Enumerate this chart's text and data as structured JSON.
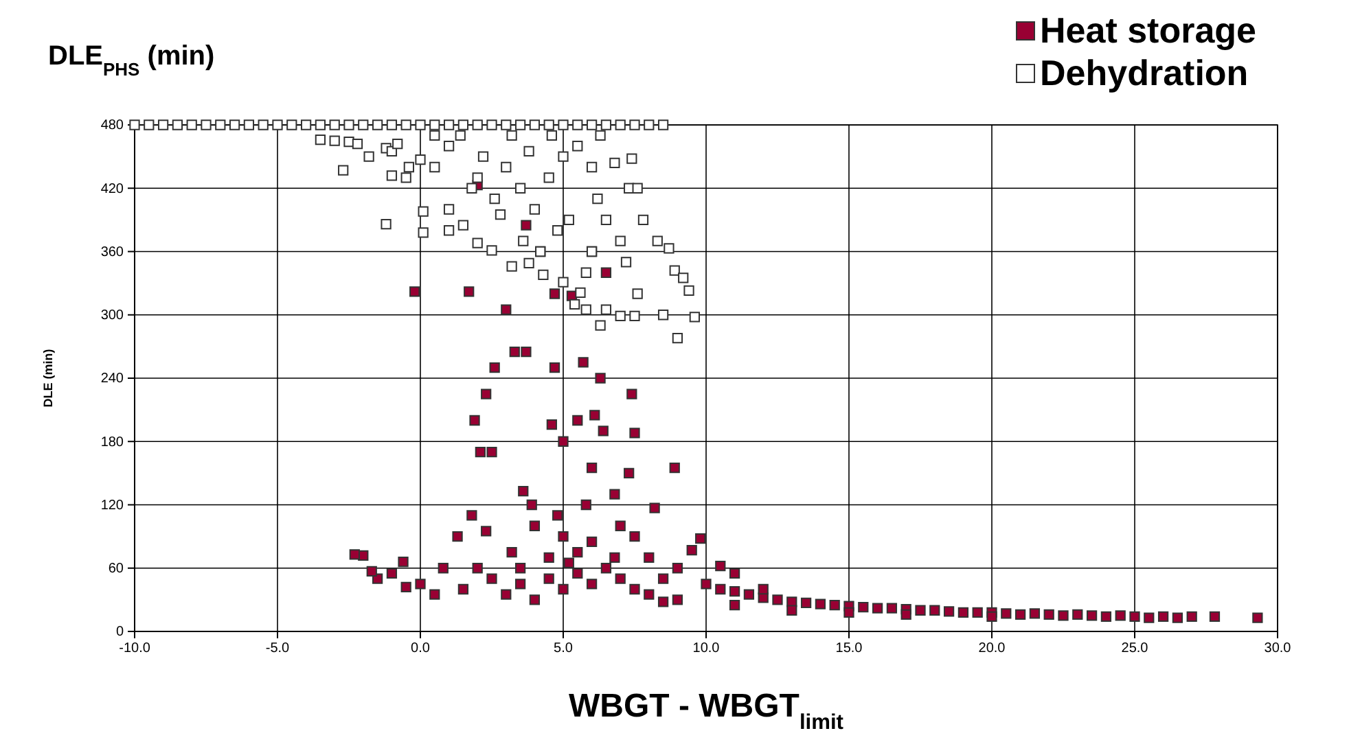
{
  "chart_data": {
    "type": "scatter",
    "title": "DLE$_{PHS}$  (min)",
    "xlabel": "WBGT - WBGT$_{limit}$",
    "ylabel": "DLE (min)",
    "xlim": [
      -10,
      30
    ],
    "xticks": [
      {
        "value": -10,
        "label": "-10.0"
      },
      {
        "value": -5,
        "label": "-5.0"
      },
      {
        "value": 0,
        "label": "0.0"
      },
      {
        "value": 5,
        "label": "5.0"
      },
      {
        "value": 10,
        "label": "10.0"
      },
      {
        "value": 15,
        "label": "15.0"
      },
      {
        "value": 20,
        "label": "20.0"
      },
      {
        "value": 25,
        "label": "25.0"
      },
      {
        "value": 30,
        "label": "30.0"
      }
    ],
    "ylim": [
      0,
      480
    ],
    "yticks": [
      0,
      60,
      120,
      180,
      240,
      300,
      360,
      420,
      480
    ],
    "grid": true,
    "legend": "top right",
    "marker": "square",
    "series": [
      {
        "name": "Heat storage",
        "color": "#990033",
        "x": [
          29.3,
          27.8,
          27,
          26.5,
          26,
          25.5,
          25,
          24.5,
          24,
          23.5,
          23,
          22.5,
          22,
          21.5,
          21,
          20.5,
          20,
          19.5,
          19,
          18.5,
          18,
          17.5,
          17,
          16.5,
          16,
          15.5,
          15,
          14.5,
          14,
          13.5,
          13,
          12.5,
          12,
          11.5,
          11,
          10.5,
          10,
          15,
          17,
          20,
          13,
          11,
          12,
          11,
          10.5,
          9.8,
          9.5,
          9,
          8.5,
          8,
          7.5,
          7,
          8.2,
          8.9,
          7.5,
          6.3,
          5.7,
          4.7,
          3.7,
          3.3,
          2.6,
          1.7,
          3,
          4.7,
          5.3,
          6,
          4.2,
          6.5,
          3.7,
          2,
          2.3,
          1.9,
          2.1,
          4.6,
          5,
          5.5,
          6.1,
          6,
          7.3,
          6.8,
          3.6,
          3.9,
          2.5,
          1.8,
          1.3,
          2.3,
          4,
          5,
          6,
          5.5,
          4.5,
          3.5,
          2.5,
          1.5,
          0.5,
          0,
          -0.5,
          -1,
          -1.5,
          -2,
          -2.3,
          -1.7,
          -0.6,
          0.8,
          2,
          3,
          4,
          5,
          6,
          7,
          8,
          9,
          6.5,
          5.5,
          4.5,
          7.5,
          8.5,
          3.5,
          5.2,
          6.8,
          4.8,
          5.8,
          3.2,
          -0.2,
          7.4,
          6.4
        ],
        "values": [
          13,
          14,
          14,
          13,
          14,
          13,
          14,
          15,
          14,
          15,
          16,
          15,
          16,
          17,
          16,
          17,
          18,
          18,
          18,
          19,
          20,
          20,
          21,
          22,
          22,
          23,
          24,
          25,
          26,
          27,
          28,
          30,
          32,
          35,
          38,
          40,
          45,
          18,
          16,
          14,
          20,
          25,
          40,
          55,
          62,
          88,
          77,
          60,
          50,
          70,
          90,
          100,
          117,
          155,
          188,
          240,
          255,
          250,
          265,
          265,
          250,
          322,
          305,
          320,
          318,
          360,
          360,
          340,
          385,
          423,
          225,
          200,
          170,
          196,
          180,
          200,
          205,
          155,
          150,
          130,
          133,
          120,
          170,
          110,
          90,
          95,
          100,
          90,
          85,
          75,
          70,
          60,
          50,
          40,
          35,
          45,
          42,
          55,
          50,
          72,
          73,
          57,
          66,
          60,
          60,
          35,
          30,
          40,
          45,
          50,
          35,
          30,
          60,
          55,
          50,
          40,
          28,
          45,
          65,
          70,
          110,
          120,
          75,
          322,
          225,
          190
        ]
      },
      {
        "name": "Dehydration",
        "color": "#ffffff",
        "x": [
          -10,
          -9.5,
          -9,
          -8.5,
          -8,
          -7.5,
          -7,
          -6.5,
          -6,
          -5.5,
          -5,
          -4.5,
          -4,
          -3.5,
          -3,
          -2.5,
          -2,
          -1.5,
          -1,
          -0.5,
          0,
          0.5,
          1,
          1.5,
          2,
          2.5,
          3,
          3.5,
          4,
          4.5,
          5,
          5.5,
          6,
          6.5,
          7,
          7.5,
          8,
          8.5,
          -3.5,
          -3,
          -2.5,
          -2.2,
          -2.7,
          -1.8,
          -1.2,
          -1,
          -0.8,
          -0.4,
          -0.5,
          -1,
          -1.2,
          0,
          0.5,
          0.1,
          0.1,
          1,
          1,
          1.5,
          2,
          2.5,
          3.2,
          3.8,
          4.3,
          5,
          5.4,
          5.6,
          5.8,
          6.3,
          6.5,
          7,
          7.6,
          7.5,
          8.5,
          9,
          9.6,
          9.4,
          8.9,
          9.2,
          7.3,
          7.6,
          7.8,
          8.3,
          8.7,
          6.8,
          7.4,
          1.4,
          2.2,
          3,
          3.5,
          2.6,
          4,
          4.5,
          5,
          5.5,
          6,
          6.2,
          5.2,
          4.8,
          3.6,
          4.2,
          6.5,
          7,
          7.2,
          6,
          5.8,
          2,
          1,
          0.5,
          3.2,
          4.6,
          6.3,
          1.8,
          2.8,
          3.8
        ],
        "values": [
          480,
          480,
          480,
          480,
          480,
          480,
          480,
          480,
          480,
          480,
          480,
          480,
          480,
          480,
          480,
          480,
          480,
          480,
          480,
          480,
          480,
          480,
          480,
          480,
          480,
          480,
          480,
          480,
          480,
          480,
          480,
          480,
          480,
          480,
          480,
          480,
          480,
          480,
          466,
          465,
          464,
          462,
          437,
          450,
          458,
          455,
          462,
          440,
          430,
          432,
          386,
          447,
          440,
          398,
          378,
          380,
          400,
          385,
          368,
          361,
          346,
          349,
          338,
          331,
          310,
          321,
          305,
          290,
          305,
          299,
          320,
          299,
          300,
          278,
          298,
          323,
          342,
          335,
          420,
          420,
          390,
          370,
          363,
          444,
          448,
          470,
          450,
          440,
          420,
          410,
          400,
          430,
          450,
          460,
          440,
          410,
          390,
          380,
          370,
          360,
          390,
          370,
          350,
          360,
          340,
          430,
          460,
          470,
          470,
          470,
          470,
          420,
          395,
          455
        ]
      }
    ]
  }
}
